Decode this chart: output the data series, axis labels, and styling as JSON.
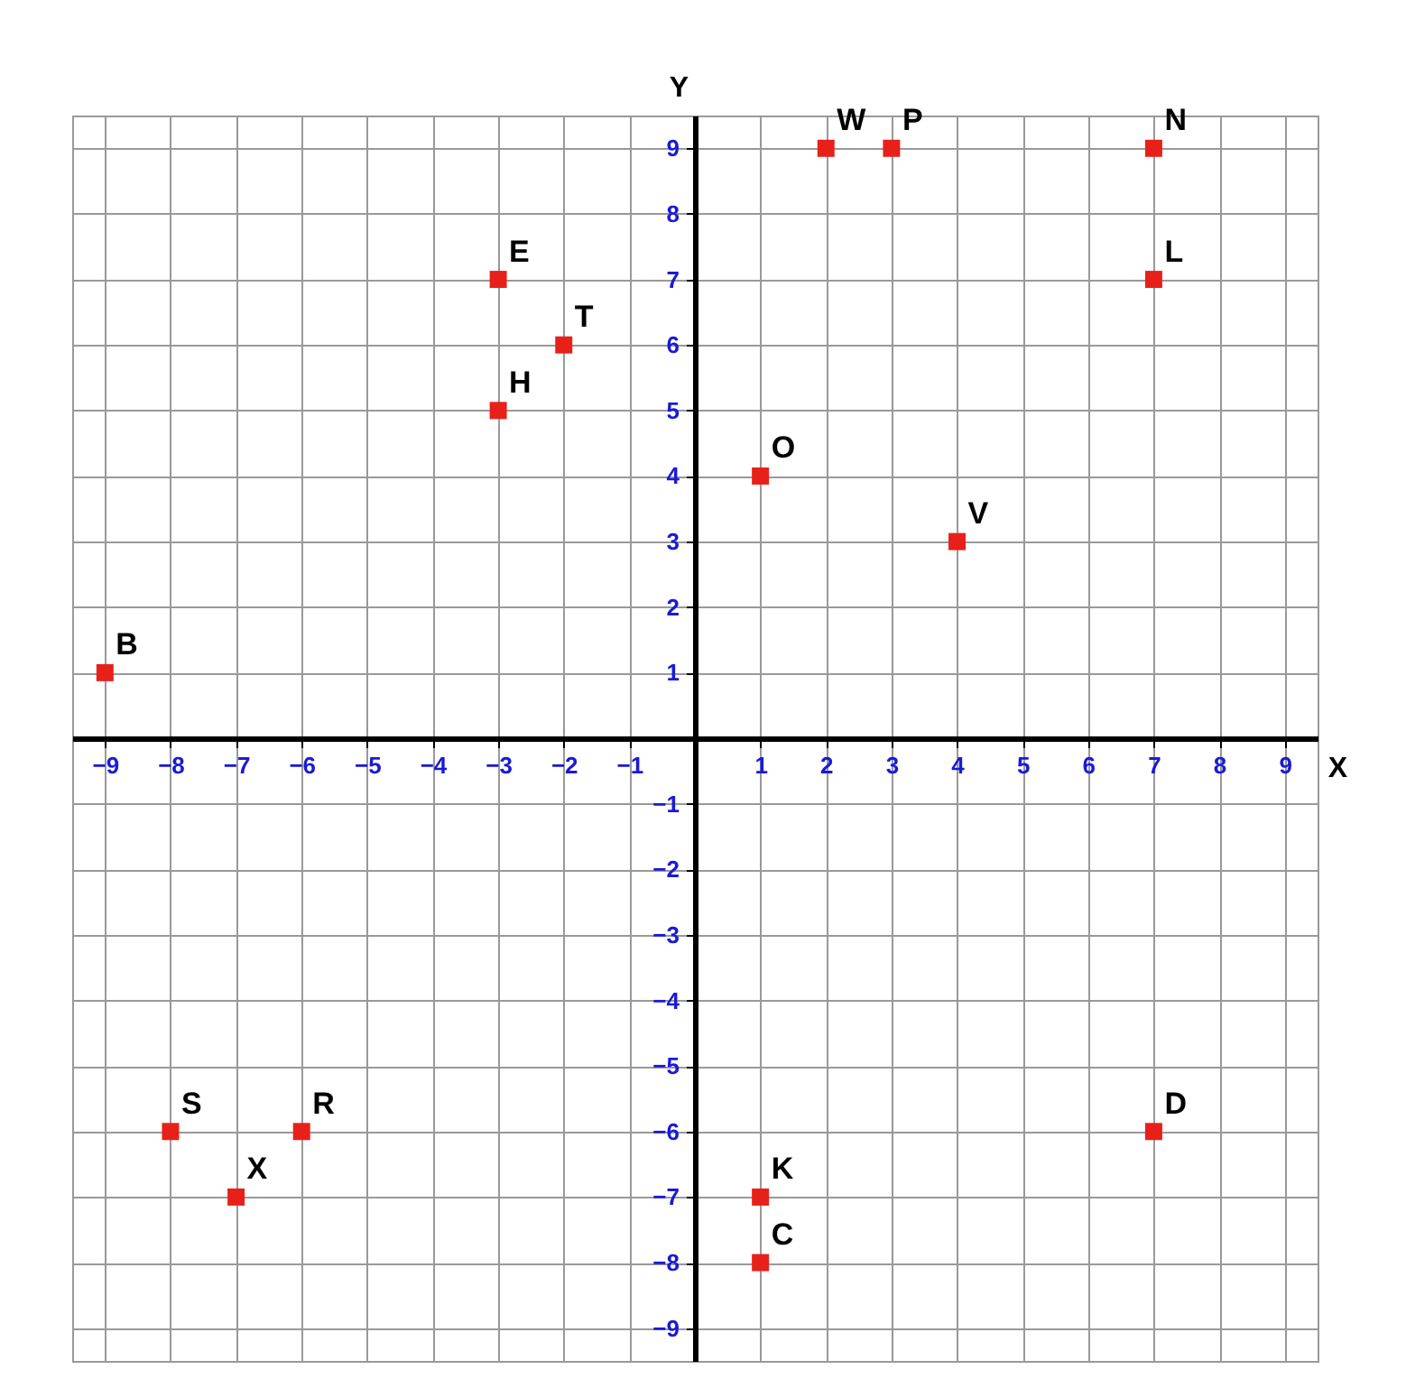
{
  "chart_data": {
    "type": "scatter",
    "xlabel": "X",
    "ylabel": "Y",
    "xlim": [
      -9.5,
      9.5
    ],
    "ylim": [
      -9.5,
      9.5
    ],
    "xticks": [
      -9,
      -8,
      -7,
      -6,
      -5,
      -4,
      -3,
      -2,
      -1,
      1,
      2,
      3,
      4,
      5,
      6,
      7,
      8,
      9
    ],
    "yticks": [
      -9,
      -8,
      -7,
      -6,
      -5,
      -4,
      -3,
      -2,
      -1,
      1,
      2,
      3,
      4,
      5,
      6,
      7,
      8,
      9
    ],
    "grid": true,
    "marker": "square",
    "x": [
      -9,
      -8,
      -7,
      -6,
      -3,
      -2,
      -3,
      1,
      2,
      3,
      7,
      7,
      4,
      7,
      1,
      1
    ],
    "series": [
      {
        "color": "#e8201a",
        "values": [
          1,
          -6,
          -7,
          -6,
          7,
          6,
          5,
          4,
          9,
          9,
          9,
          7,
          3,
          -6,
          -7,
          -8
        ]
      }
    ],
    "annotations": [
      {
        "text": "B",
        "x": -9,
        "y": 1
      },
      {
        "text": "S",
        "x": -8,
        "y": -6
      },
      {
        "text": "X",
        "x": -7,
        "y": -7
      },
      {
        "text": "R",
        "x": -6,
        "y": -6
      },
      {
        "text": "E",
        "x": -3,
        "y": 7
      },
      {
        "text": "T",
        "x": -2,
        "y": 6
      },
      {
        "text": "H",
        "x": -3,
        "y": 5
      },
      {
        "text": "O",
        "x": 1,
        "y": 4
      },
      {
        "text": "W",
        "x": 2,
        "y": 9
      },
      {
        "text": "P",
        "x": 3,
        "y": 9
      },
      {
        "text": "N",
        "x": 7,
        "y": 9
      },
      {
        "text": "L",
        "x": 7,
        "y": 7
      },
      {
        "text": "V",
        "x": 4,
        "y": 3
      },
      {
        "text": "D",
        "x": 7,
        "y": -6
      },
      {
        "text": "K",
        "x": 1,
        "y": -7
      },
      {
        "text": "C",
        "x": 1,
        "y": -8
      }
    ]
  }
}
